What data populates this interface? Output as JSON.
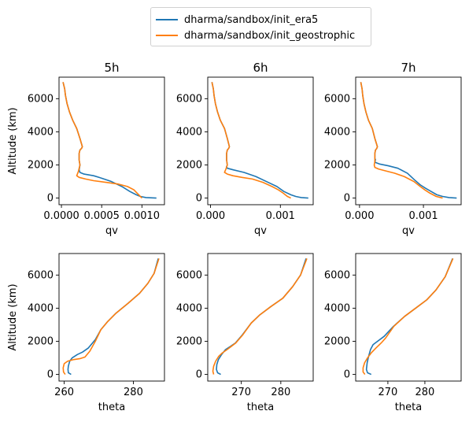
{
  "legend": {
    "items": [
      {
        "label": "dharma/sandbox/init_era5",
        "color": "#1f77b4"
      },
      {
        "label": "dharma/sandbox/init_geostrophic",
        "color": "#ff7f0e"
      }
    ]
  },
  "chart_data": [
    {
      "type": "line",
      "title": "5h",
      "xlabel": "qv",
      "ylabel": "Altitude (km)",
      "xlim": [
        -3e-05,
        0.00128
      ],
      "ylim": [
        -400,
        7300
      ],
      "xticks": [
        0.0,
        0.0005,
        0.001
      ],
      "xticklabels": [
        "0.0000",
        "0.0005",
        "0.0010"
      ],
      "yticks": [
        0,
        2000,
        4000,
        6000
      ],
      "yticklabels": [
        "0",
        "2000",
        "4000",
        "6000"
      ],
      "series": [
        {
          "name": "dharma/sandbox/init_era5",
          "color": "#1f77b4",
          "x": [
            0.00118,
            0.00105,
            0.00098,
            0.00093,
            0.00085,
            0.00075,
            0.00062,
            0.0005,
            0.0004,
            0.00028,
            0.00023,
            0.00022,
            0.00023,
            0.00022,
            0.00022,
            0.00023,
            0.00025,
            0.00026,
            0.00023,
            0.00019,
            0.00014,
            0.0001,
            7e-05,
            5e-05,
            4e-05,
            2e-05
          ],
          "y": [
            0,
            30,
            100,
            200,
            400,
            700,
            1000,
            1200,
            1350,
            1450,
            1550,
            1700,
            2000,
            2300,
            2700,
            2900,
            3000,
            3100,
            3600,
            4200,
            4700,
            5200,
            5700,
            6200,
            6600,
            7000
          ]
        },
        {
          "name": "dharma/sandbox/init_geostrophic",
          "color": "#ff7f0e",
          "x": [
            0.001,
            0.00098,
            0.00094,
            0.0009,
            0.00082,
            0.0007,
            0.00055,
            0.0004,
            0.0003,
            0.00022,
            0.00019,
            0.00021,
            0.00023,
            0.00022,
            0.00022,
            0.00023,
            0.00025,
            0.00026,
            0.00023,
            0.00019,
            0.00014,
            0.0001,
            7e-05,
            5e-05,
            4e-05,
            2e-05
          ],
          "y": [
            0,
            100,
            300,
            500,
            700,
            850,
            950,
            1050,
            1150,
            1250,
            1350,
            1600,
            2000,
            2300,
            2700,
            2900,
            3000,
            3100,
            3600,
            4200,
            4700,
            5200,
            5700,
            6200,
            6600,
            7000
          ]
        }
      ]
    },
    {
      "type": "line",
      "title": "6h",
      "xlabel": "qv",
      "ylabel": "",
      "xlim": [
        -4e-05,
        0.00147
      ],
      "ylim": [
        -400,
        7300
      ],
      "xticks": [
        0.0,
        0.001
      ],
      "xticklabels": [
        "0.000",
        "0.001"
      ],
      "yticks": [
        0,
        2000,
        4000,
        6000
      ],
      "yticklabels": [
        "0",
        "2000",
        "4000",
        "6000"
      ],
      "series": [
        {
          "name": "dharma/sandbox/init_era5",
          "color": "#1f77b4",
          "x": [
            0.0014,
            0.0013,
            0.00122,
            0.00115,
            0.00105,
            0.00095,
            0.0008,
            0.00065,
            0.00048,
            0.00033,
            0.00024,
            0.00023,
            0.00024,
            0.00023,
            0.00023,
            0.00024,
            0.00026,
            0.00027,
            0.00024,
            0.0002,
            0.00014,
            0.0001,
            7e-05,
            5e-05,
            4e-05,
            2e-05
          ],
          "y": [
            0,
            30,
            100,
            200,
            400,
            700,
            1000,
            1300,
            1550,
            1700,
            1800,
            1900,
            2000,
            2300,
            2700,
            2900,
            3000,
            3100,
            3600,
            4200,
            4700,
            5200,
            5700,
            6200,
            6600,
            7000
          ]
        },
        {
          "name": "dharma/sandbox/init_geostrophic",
          "color": "#ff7f0e",
          "x": [
            0.00115,
            0.0011,
            0.00104,
            0.00097,
            0.00088,
            0.00075,
            0.0006,
            0.00045,
            0.00032,
            0.00024,
            0.0002,
            0.00022,
            0.00024,
            0.00023,
            0.00023,
            0.00024,
            0.00026,
            0.00027,
            0.00024,
            0.0002,
            0.00014,
            0.0001,
            7e-05,
            5e-05,
            4e-05,
            2e-05
          ],
          "y": [
            0,
            100,
            300,
            500,
            700,
            950,
            1150,
            1250,
            1350,
            1450,
            1550,
            1750,
            2000,
            2300,
            2700,
            2900,
            3000,
            3100,
            3600,
            4200,
            4700,
            5200,
            5700,
            6200,
            6600,
            7000
          ]
        }
      ]
    },
    {
      "type": "line",
      "title": "7h",
      "xlabel": "qv",
      "ylabel": "",
      "xlim": [
        -6e-05,
        0.00159
      ],
      "ylim": [
        -400,
        7300
      ],
      "xticks": [
        0.0,
        0.001
      ],
      "xticklabels": [
        "0.000",
        "0.001"
      ],
      "yticks": [
        0,
        2000,
        4000,
        6000
      ],
      "yticklabels": [
        "0",
        "2000",
        "4000",
        "6000"
      ],
      "series": [
        {
          "name": "dharma/sandbox/init_era5",
          "color": "#1f77b4",
          "x": [
            0.00152,
            0.0014,
            0.0013,
            0.00121,
            0.00112,
            0.00103,
            0.00095,
            0.00086,
            0.00075,
            0.0006,
            0.00045,
            0.00032,
            0.00025,
            0.00024,
            0.00025,
            0.00024,
            0.00024,
            0.00025,
            0.00027,
            0.00028,
            0.00024,
            0.0002,
            0.00014,
            0.0001,
            7e-05,
            5e-05,
            4e-05,
            2e-05
          ],
          "y": [
            0,
            30,
            100,
            200,
            400,
            600,
            800,
            1100,
            1500,
            1800,
            1950,
            2050,
            2150,
            2250,
            2300,
            2400,
            2700,
            2900,
            3000,
            3100,
            3600,
            4200,
            4700,
            5200,
            5700,
            6200,
            6600,
            7000
          ]
        },
        {
          "name": "dharma/sandbox/init_geostrophic",
          "color": "#ff7f0e",
          "x": [
            0.0013,
            0.0012,
            0.0011,
            0.00102,
            0.00095,
            0.00085,
            0.0007,
            0.00055,
            0.0004,
            0.0003,
            0.00024,
            0.00023,
            0.00024,
            0.00024,
            0.00024,
            0.00025,
            0.00027,
            0.00028,
            0.00024,
            0.0002,
            0.00014,
            0.0001,
            7e-05,
            5e-05,
            4e-05,
            2e-05
          ],
          "y": [
            0,
            100,
            300,
            500,
            700,
            1000,
            1300,
            1500,
            1650,
            1750,
            1850,
            2000,
            2200,
            2400,
            2700,
            2900,
            3000,
            3100,
            3600,
            4200,
            4700,
            5200,
            5700,
            6200,
            6600,
            7000
          ]
        }
      ]
    },
    {
      "type": "line",
      "title": "",
      "xlabel": "theta",
      "ylabel": "Altitude (km)",
      "xlim": [
        258.5,
        289
      ],
      "ylim": [
        -400,
        7300
      ],
      "xticks": [
        260,
        280
      ],
      "xticklabels": [
        "260",
        "280"
      ],
      "yticks": [
        0,
        2000,
        4000,
        6000
      ],
      "yticklabels": [
        "0",
        "2000",
        "4000",
        "6000"
      ],
      "series": [
        {
          "name": "dharma/sandbox/init_era5",
          "color": "#1f77b4",
          "x": [
            262,
            261.2,
            261.1,
            261.2,
            261.6,
            262.3,
            263.8,
            265.3,
            267,
            269,
            270.6,
            272.6,
            275,
            278.5,
            281.8,
            284.2,
            286,
            287.2
          ],
          "y": [
            0,
            100,
            300,
            500,
            800,
            1000,
            1200,
            1350,
            1600,
            2100,
            2700,
            3200,
            3700,
            4300,
            4900,
            5500,
            6100,
            7000
          ]
        },
        {
          "name": "dharma/sandbox/init_geostrophic",
          "color": "#ff7f0e",
          "x": [
            260.3,
            259.8,
            259.7,
            260,
            261,
            262.8,
            264.5,
            266,
            267.4,
            269,
            270.6,
            272.6,
            275,
            278.5,
            281.8,
            284.2,
            286,
            287.4
          ],
          "y": [
            0,
            150,
            400,
            650,
            800,
            900,
            950,
            1050,
            1400,
            2000,
            2700,
            3200,
            3700,
            4300,
            4900,
            5500,
            6100,
            7000
          ]
        }
      ]
    },
    {
      "type": "line",
      "title": "",
      "xlabel": "theta",
      "ylabel": "",
      "xlim": [
        261.5,
        288.2
      ],
      "ylim": [
        -400,
        7300
      ],
      "xticks": [
        270,
        280
      ],
      "xticklabels": [
        "270",
        "280"
      ],
      "yticks": [
        0,
        2000,
        4000,
        6000
      ],
      "yticklabels": [
        "0",
        "2000",
        "4000",
        "6000"
      ],
      "series": [
        {
          "name": "dharma/sandbox/init_era5",
          "color": "#1f77b4",
          "x": [
            264.8,
            264,
            263.7,
            263.8,
            264.2,
            265,
            266,
            267.3,
            268.5,
            270.3,
            272.5,
            274.7,
            277.5,
            280.5,
            283,
            285,
            286.4
          ],
          "y": [
            0,
            100,
            300,
            600,
            900,
            1200,
            1500,
            1700,
            1900,
            2400,
            3100,
            3600,
            4100,
            4600,
            5300,
            6000,
            7000
          ]
        },
        {
          "name": "dharma/sandbox/init_geostrophic",
          "color": "#ff7f0e",
          "x": [
            263,
            262.8,
            263,
            263.5,
            264.3,
            265.2,
            266.4,
            267.5,
            268.6,
            270.4,
            272.5,
            274.7,
            277.5,
            280.5,
            283,
            285,
            286.6
          ],
          "y": [
            0,
            200,
            500,
            800,
            1100,
            1300,
            1500,
            1700,
            1900,
            2400,
            3100,
            3600,
            4100,
            4600,
            5300,
            6000,
            7000
          ]
        }
      ]
    },
    {
      "type": "line",
      "title": "",
      "xlabel": "theta",
      "ylabel": "",
      "xlim": [
        261.3,
        289.8
      ],
      "ylim": [
        -400,
        7300
      ],
      "xticks": [
        270,
        280
      ],
      "xticklabels": [
        "270",
        "280"
      ],
      "yticks": [
        0,
        2000,
        4000,
        6000
      ],
      "yticklabels": [
        "0",
        "2000",
        "4000",
        "6000"
      ],
      "series": [
        {
          "name": "dharma/sandbox/init_era5",
          "color": "#1f77b4",
          "x": [
            265.5,
            264.5,
            264.2,
            264.4,
            264.8,
            265.3,
            266,
            267.2,
            269,
            271.5,
            274.5,
            277.5,
            280.5,
            283,
            285.5,
            287.5
          ],
          "y": [
            0,
            100,
            300,
            700,
            1100,
            1500,
            1800,
            2000,
            2300,
            2900,
            3500,
            4000,
            4500,
            5100,
            5900,
            7000
          ]
        },
        {
          "name": "dharma/sandbox/init_geostrophic",
          "color": "#ff7f0e",
          "x": [
            263.8,
            263.3,
            263.3,
            263.7,
            264.5,
            265.5,
            266.8,
            268.2,
            269.4,
            271.6,
            274.5,
            277.5,
            280.5,
            283,
            285.5,
            287.6
          ],
          "y": [
            0,
            150,
            400,
            700,
            1000,
            1300,
            1600,
            1900,
            2200,
            2900,
            3500,
            4000,
            4500,
            5100,
            5900,
            7000
          ]
        }
      ]
    }
  ]
}
